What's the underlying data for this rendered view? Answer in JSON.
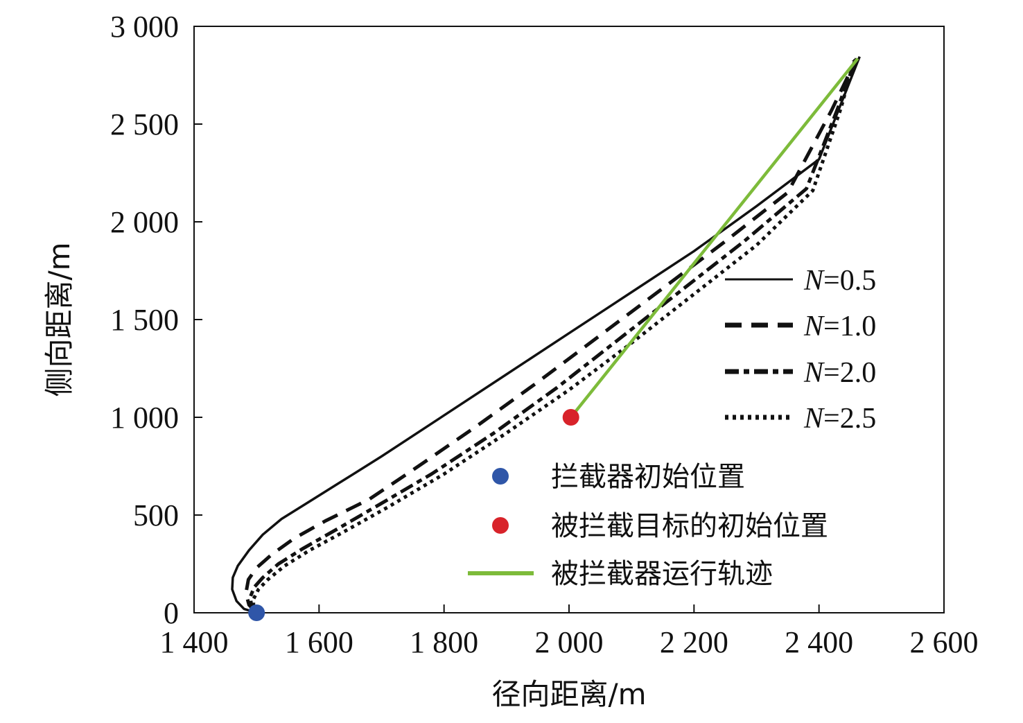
{
  "chart_data": {
    "type": "line",
    "xlabel": "径向距离/m",
    "ylabel": "侧向距离/m",
    "xlim": [
      1400,
      2600
    ],
    "ylim": [
      0,
      3000
    ],
    "x_ticks": [
      {
        "value": 1400,
        "label": "1 400"
      },
      {
        "value": 1600,
        "label": "1 600"
      },
      {
        "value": 1800,
        "label": "1 800"
      },
      {
        "value": 2000,
        "label": "2 000"
      },
      {
        "value": 2200,
        "label": "2 200"
      },
      {
        "value": 2400,
        "label": "2 400"
      },
      {
        "value": 2600,
        "label": "2 600"
      }
    ],
    "y_ticks": [
      {
        "value": 0,
        "label": "0"
      },
      {
        "value": 500,
        "label": "500"
      },
      {
        "value": 1000,
        "label": "1 000"
      },
      {
        "value": 1500,
        "label": "1 500"
      },
      {
        "value": 2000,
        "label": "2 000"
      },
      {
        "value": 2500,
        "label": "2 500"
      },
      {
        "value": 3000,
        "label": "3 000"
      }
    ],
    "grid": false,
    "legend_position": "right",
    "series": [
      {
        "name_prefix": "N",
        "name_suffix": "=0.5",
        "style": "solid",
        "color": "#111111",
        "points": [
          [
            1500,
            0
          ],
          [
            1480,
            20
          ],
          [
            1468,
            60
          ],
          [
            1461,
            120
          ],
          [
            1462,
            180
          ],
          [
            1470,
            240
          ],
          [
            1488,
            320
          ],
          [
            1510,
            400
          ],
          [
            1540,
            480
          ],
          [
            1580,
            560
          ],
          [
            1630,
            660
          ],
          [
            1700,
            800
          ],
          [
            1800,
            1010
          ],
          [
            1900,
            1220
          ],
          [
            2000,
            1430
          ],
          [
            2100,
            1640
          ],
          [
            2200,
            1850
          ],
          [
            2300,
            2080
          ],
          [
            2400,
            2320
          ],
          [
            2465,
            2845
          ]
        ]
      },
      {
        "name_prefix": "N",
        "name_suffix": "=1.0",
        "style": "dashed",
        "color": "#111111",
        "points": [
          [
            1500,
            0
          ],
          [
            1488,
            40
          ],
          [
            1483,
            100
          ],
          [
            1487,
            170
          ],
          [
            1500,
            230
          ],
          [
            1525,
            300
          ],
          [
            1560,
            380
          ],
          [
            1610,
            470
          ],
          [
            1680,
            580
          ],
          [
            1750,
            730
          ],
          [
            1850,
            950
          ],
          [
            1950,
            1180
          ],
          [
            2050,
            1420
          ],
          [
            2150,
            1660
          ],
          [
            2250,
            1900
          ],
          [
            2350,
            2150
          ],
          [
            2420,
            2570
          ],
          [
            2460,
            2835
          ]
        ]
      },
      {
        "name_prefix": "N",
        "name_suffix": "=2.0",
        "style": "dashdot",
        "color": "#111111",
        "points": [
          [
            1500,
            0
          ],
          [
            1492,
            30
          ],
          [
            1490,
            80
          ],
          [
            1496,
            130
          ],
          [
            1510,
            180
          ],
          [
            1535,
            250
          ],
          [
            1575,
            330
          ],
          [
            1630,
            430
          ],
          [
            1700,
            560
          ],
          [
            1780,
            710
          ],
          [
            1880,
            920
          ],
          [
            1980,
            1150
          ],
          [
            2080,
            1400
          ],
          [
            2180,
            1650
          ],
          [
            2280,
            1900
          ],
          [
            2380,
            2170
          ],
          [
            2430,
            2580
          ],
          [
            2458,
            2830
          ]
        ]
      },
      {
        "name_prefix": "N",
        "name_suffix": "=2.5",
        "style": "dotted",
        "color": "#111111",
        "points": [
          [
            1500,
            0
          ],
          [
            1495,
            25
          ],
          [
            1495,
            70
          ],
          [
            1503,
            120
          ],
          [
            1518,
            170
          ],
          [
            1545,
            240
          ],
          [
            1585,
            320
          ],
          [
            1640,
            415
          ],
          [
            1710,
            540
          ],
          [
            1800,
            710
          ],
          [
            1900,
            920
          ],
          [
            2000,
            1140
          ],
          [
            2100,
            1380
          ],
          [
            2200,
            1630
          ],
          [
            2300,
            1880
          ],
          [
            2390,
            2160
          ],
          [
            2435,
            2580
          ],
          [
            2456,
            2825
          ]
        ]
      }
    ],
    "markers": [
      {
        "name": "拦截器初始位置",
        "x": 1500,
        "y": 0,
        "color": "#2f56a8"
      },
      {
        "name": "被拦截目标的初始位置",
        "x": 2003,
        "y": 1000,
        "color": "#d8232a"
      }
    ],
    "target_path": {
      "name": "被拦截器运行轨迹",
      "color": "#7dbb3a",
      "points": [
        [
          2003,
          1000
        ],
        [
          2462,
          2835
        ]
      ]
    }
  }
}
